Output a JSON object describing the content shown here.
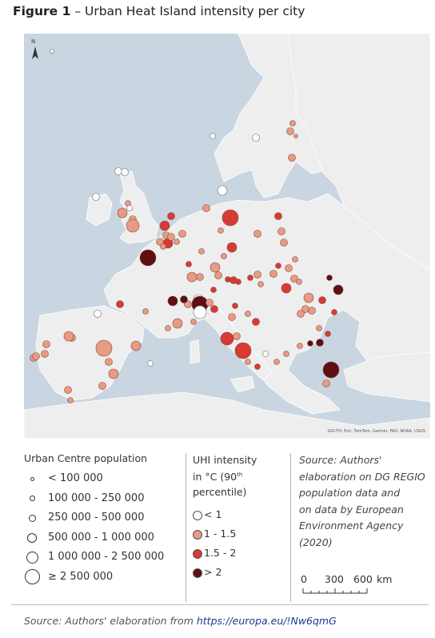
{
  "title": {
    "label": "Figure 1",
    "text": "– Urban Heat Island intensity per city"
  },
  "map": {
    "north_label": "N",
    "attribution": "GDI-TH, Esri, TomTom, Garmin, FAO, NOAA, USGS",
    "colors": {
      "sea": "#c9d6e2",
      "land": "#eeeeee",
      "border": "#ffffff",
      "uhi_lt1": "#ffffff",
      "uhi_1_1_5": "#e99a82",
      "uhi_1_5_2": "#d83a34",
      "uhi_gt2": "#5e0f12",
      "outline": "#7a4a40"
    }
  },
  "legend_population": {
    "heading": "Urban Centre population",
    "classes": [
      {
        "label": "< 100 000",
        "size_class": 1
      },
      {
        "label": "100 000 - 250 000",
        "size_class": 2
      },
      {
        "label": "250 000 - 500 000",
        "size_class": 3
      },
      {
        "label": "500 000 - 1 000 000",
        "size_class": 4
      },
      {
        "label": "1 000 000 - 2 500 000",
        "size_class": 5
      },
      {
        "label": "≥ 2 500 000",
        "size_class": 6
      }
    ]
  },
  "legend_uhi": {
    "heading_line1": "UHI intensity",
    "heading_line2": "in °C (90",
    "heading_sup": "th",
    "heading_line3": "percentile)",
    "classes": [
      {
        "label": "< 1",
        "category": 0
      },
      {
        "label": "1 - 1.5",
        "category": 1
      },
      {
        "label": "1.5 - 2",
        "category": 2
      },
      {
        "label": "> 2",
        "category": 3
      }
    ]
  },
  "source_note": {
    "lines": [
      "Source: Authors'",
      "elaboration on DG REGIO",
      "population data and",
      "on data by European",
      "Environment Agency",
      "(2020)"
    ]
  },
  "scale_bar": {
    "labels": [
      "0",
      "300",
      "600"
    ],
    "unit": "km"
  },
  "footer": {
    "prefix": "Source: Authors' elaboration from ",
    "link_text": "https://europa.eu/!Nw6qmG"
  }
}
